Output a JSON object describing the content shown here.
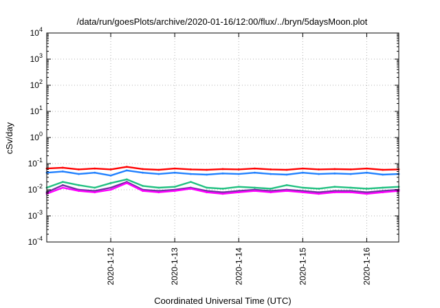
{
  "chart_data": {
    "type": "line",
    "title": "/data/run/goesPlots/archive/2020-01-16/12:00/flux/../bryn/5daysMoon.plot",
    "xlabel": "Coordinated Universal Time (UTC)",
    "ylabel": "cSv/day",
    "y_scale": "log",
    "ylim": [
      0.0001,
      10000
    ],
    "y_ticks": [
      {
        "base": "10",
        "exp": "-4",
        "value": 0.0001
      },
      {
        "base": "10",
        "exp": "-3",
        "value": 0.001
      },
      {
        "base": "10",
        "exp": "-2",
        "value": 0.01
      },
      {
        "base": "10",
        "exp": "-1",
        "value": 0.1
      },
      {
        "base": "10",
        "exp": "0",
        "value": 1
      },
      {
        "base": "10",
        "exp": "1",
        "value": 10
      },
      {
        "base": "10",
        "exp": "2",
        "value": 100
      },
      {
        "base": "10",
        "exp": "3",
        "value": 1000
      },
      {
        "base": "10",
        "exp": "4",
        "value": 10000
      }
    ],
    "xlim": [
      "2020-01-11T00:00",
      "2020-01-16T12:00"
    ],
    "x_ticks": [
      {
        "label": "2020-1-12",
        "value": "2020-01-12T00:00"
      },
      {
        "label": "2020-1-13",
        "value": "2020-01-13T00:00"
      },
      {
        "label": "2020-1-14",
        "value": "2020-01-14T00:00"
      },
      {
        "label": "2020-1-15",
        "value": "2020-01-15T00:00"
      },
      {
        "label": "2020-1-16",
        "value": "2020-01-16T00:00"
      }
    ],
    "grid": true,
    "legend": "none",
    "colors": [
      "#ff0000",
      "#2080ff",
      "#20c080",
      "#7030a0",
      "#ff00ff"
    ],
    "series": [
      {
        "color": "#ff0000",
        "x": [
          "2020-01-11T00:00",
          "2020-01-11T06:00",
          "2020-01-11T12:00",
          "2020-01-11T18:00",
          "2020-01-12T00:00",
          "2020-01-12T06:00",
          "2020-01-12T12:00",
          "2020-01-12T18:00",
          "2020-01-13T00:00",
          "2020-01-13T06:00",
          "2020-01-13T12:00",
          "2020-01-13T18:00",
          "2020-01-14T00:00",
          "2020-01-14T06:00",
          "2020-01-14T12:00",
          "2020-01-14T18:00",
          "2020-01-15T00:00",
          "2020-01-15T06:00",
          "2020-01-15T12:00",
          "2020-01-15T18:00",
          "2020-01-16T00:00",
          "2020-01-16T06:00",
          "2020-01-16T12:00"
        ],
        "values": [
          0.065,
          0.07,
          0.06,
          0.065,
          0.06,
          0.075,
          0.062,
          0.058,
          0.065,
          0.06,
          0.058,
          0.062,
          0.06,
          0.065,
          0.06,
          0.058,
          0.065,
          0.06,
          0.062,
          0.06,
          0.065,
          0.058,
          0.06
        ]
      },
      {
        "color": "#2080ff",
        "x": [
          "2020-01-11T00:00",
          "2020-01-11T06:00",
          "2020-01-11T12:00",
          "2020-01-11T18:00",
          "2020-01-12T00:00",
          "2020-01-12T06:00",
          "2020-01-12T12:00",
          "2020-01-12T18:00",
          "2020-01-13T00:00",
          "2020-01-13T06:00",
          "2020-01-13T12:00",
          "2020-01-13T18:00",
          "2020-01-14T00:00",
          "2020-01-14T06:00",
          "2020-01-14T12:00",
          "2020-01-14T18:00",
          "2020-01-15T00:00",
          "2020-01-15T06:00",
          "2020-01-15T12:00",
          "2020-01-15T18:00",
          "2020-01-16T00:00",
          "2020-01-16T06:00",
          "2020-01-16T12:00"
        ],
        "values": [
          0.045,
          0.05,
          0.04,
          0.045,
          0.035,
          0.055,
          0.045,
          0.04,
          0.045,
          0.04,
          0.038,
          0.042,
          0.04,
          0.045,
          0.04,
          0.038,
          0.045,
          0.04,
          0.042,
          0.04,
          0.045,
          0.038,
          0.04
        ]
      },
      {
        "color": "#20c080",
        "x": [
          "2020-01-11T00:00",
          "2020-01-11T06:00",
          "2020-01-11T12:00",
          "2020-01-11T18:00",
          "2020-01-12T00:00",
          "2020-01-12T06:00",
          "2020-01-12T12:00",
          "2020-01-12T18:00",
          "2020-01-13T00:00",
          "2020-01-13T06:00",
          "2020-01-13T12:00",
          "2020-01-13T18:00",
          "2020-01-14T00:00",
          "2020-01-14T06:00",
          "2020-01-14T12:00",
          "2020-01-14T18:00",
          "2020-01-15T00:00",
          "2020-01-15T06:00",
          "2020-01-15T12:00",
          "2020-01-15T18:00",
          "2020-01-16T00:00",
          "2020-01-16T06:00",
          "2020-01-16T12:00"
        ],
        "values": [
          0.012,
          0.02,
          0.015,
          0.012,
          0.018,
          0.025,
          0.014,
          0.012,
          0.013,
          0.02,
          0.012,
          0.011,
          0.013,
          0.012,
          0.011,
          0.015,
          0.012,
          0.011,
          0.013,
          0.012,
          0.011,
          0.012,
          0.013
        ]
      },
      {
        "color": "#7030a0",
        "x": [
          "2020-01-11T00:00",
          "2020-01-11T06:00",
          "2020-01-11T12:00",
          "2020-01-11T18:00",
          "2020-01-12T00:00",
          "2020-01-12T06:00",
          "2020-01-12T12:00",
          "2020-01-12T18:00",
          "2020-01-13T00:00",
          "2020-01-13T06:00",
          "2020-01-13T12:00",
          "2020-01-13T18:00",
          "2020-01-14T00:00",
          "2020-01-14T06:00",
          "2020-01-14T12:00",
          "2020-01-14T18:00",
          "2020-01-15T00:00",
          "2020-01-15T06:00",
          "2020-01-15T12:00",
          "2020-01-15T18:00",
          "2020-01-16T00:00",
          "2020-01-16T06:00",
          "2020-01-16T12:00"
        ],
        "values": [
          0.008,
          0.015,
          0.01,
          0.009,
          0.012,
          0.02,
          0.01,
          0.009,
          0.01,
          0.012,
          0.009,
          0.008,
          0.009,
          0.01,
          0.009,
          0.01,
          0.009,
          0.008,
          0.009,
          0.009,
          0.008,
          0.009,
          0.01
        ]
      },
      {
        "color": "#ff00ff",
        "x": [
          "2020-01-11T00:00",
          "2020-01-11T06:00",
          "2020-01-11T12:00",
          "2020-01-11T18:00",
          "2020-01-12T00:00",
          "2020-01-12T06:00",
          "2020-01-12T12:00",
          "2020-01-12T18:00",
          "2020-01-13T00:00",
          "2020-01-13T06:00",
          "2020-01-13T12:00",
          "2020-01-13T18:00",
          "2020-01-14T00:00",
          "2020-01-14T06:00",
          "2020-01-14T12:00",
          "2020-01-14T18:00",
          "2020-01-15T00:00",
          "2020-01-15T06:00",
          "2020-01-15T12:00",
          "2020-01-15T18:00",
          "2020-01-16T00:00",
          "2020-01-16T06:00",
          "2020-01-16T12:00"
        ],
        "values": [
          0.007,
          0.012,
          0.009,
          0.008,
          0.01,
          0.018,
          0.009,
          0.008,
          0.009,
          0.011,
          0.008,
          0.007,
          0.008,
          0.009,
          0.008,
          0.009,
          0.008,
          0.007,
          0.008,
          0.008,
          0.007,
          0.008,
          0.009
        ]
      }
    ]
  }
}
